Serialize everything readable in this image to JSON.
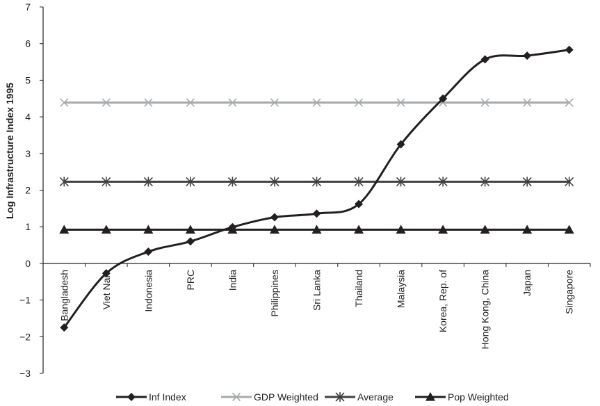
{
  "chart_data": {
    "type": "line",
    "title": "",
    "xlabel": "",
    "ylabel": "Log Infrastructure Index 1995",
    "ylim": [
      -3,
      7
    ],
    "yticks": [
      -3,
      -2,
      -1,
      0,
      1,
      2,
      3,
      4,
      5,
      6,
      7
    ],
    "grid": false,
    "legend_position": "bottom",
    "categories": [
      "Bangladesh",
      "Viet Nam",
      "Indonesia",
      "PRC",
      "India",
      "Philippines",
      "Sri Lanka",
      "Thailand",
      "Malaysia",
      "Korea, Rep. of",
      "Hong Kong, China",
      "Japan",
      "Singapore"
    ],
    "series": [
      {
        "name": "Inf Index",
        "color": "#231f20",
        "marker": "diamond",
        "values": [
          -1.75,
          -0.27,
          0.32,
          0.6,
          0.99,
          1.26,
          1.36,
          1.62,
          3.25,
          4.5,
          5.57,
          5.67,
          5.83
        ]
      },
      {
        "name": "GDP Weighted",
        "color": "#a7a9ac",
        "marker": "x",
        "values": [
          4.39,
          4.39,
          4.39,
          4.39,
          4.39,
          4.39,
          4.39,
          4.39,
          4.39,
          4.39,
          4.39,
          4.39,
          4.39
        ]
      },
      {
        "name": "Average",
        "color": "#414042",
        "marker": "star",
        "values": [
          2.23,
          2.23,
          2.23,
          2.23,
          2.23,
          2.23,
          2.23,
          2.23,
          2.23,
          2.23,
          2.23,
          2.23,
          2.23
        ]
      },
      {
        "name": "Pop Weighted",
        "color": "#231f20",
        "marker": "triangle",
        "values": [
          0.92,
          0.92,
          0.92,
          0.92,
          0.92,
          0.92,
          0.92,
          0.92,
          0.92,
          0.92,
          0.92,
          0.92,
          0.92
        ]
      }
    ]
  }
}
